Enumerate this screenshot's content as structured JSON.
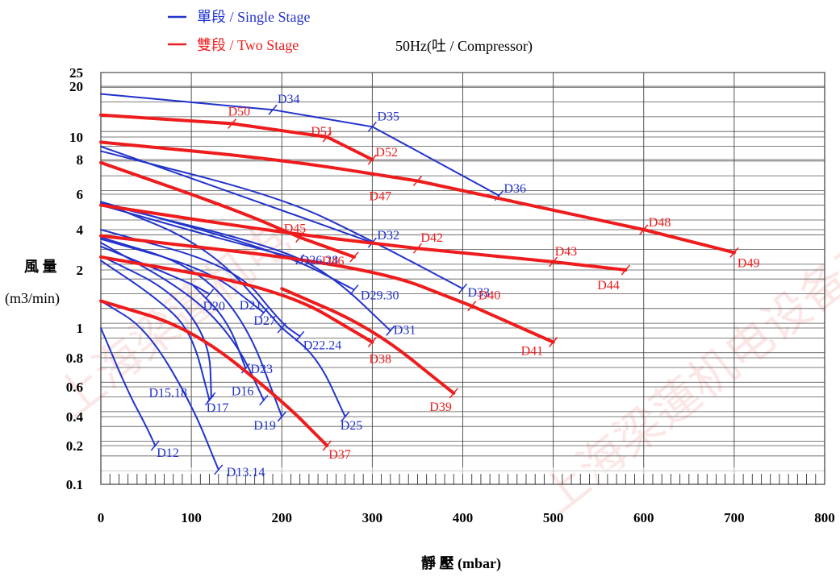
{
  "chart_data": {
    "type": "line",
    "title": "50Hz(吐 / Compressor)",
    "xlabel": "靜 壓 (mbar)",
    "ylabel": [
      "風 量",
      "(m3/min)"
    ],
    "xlim": [
      0,
      800
    ],
    "ylim": [
      0.1,
      25
    ],
    "y_scale": "stretched (non-uniform, ticks evenly spaced in groups)",
    "x_ticks": [
      0,
      100,
      200,
      300,
      400,
      500,
      600,
      700,
      800
    ],
    "y_ticks": [
      "0.1",
      "0.2",
      "0.4",
      "0.6",
      "0.8",
      "1",
      "2",
      "4",
      "6",
      "8",
      "10",
      "20",
      "25"
    ],
    "grid": true,
    "legend": {
      "position": "top-left",
      "entries": [
        {
          "label": "單段 / Single Stage",
          "color": "#2233cc"
        },
        {
          "label": "雙段 / Two Stage",
          "color": "#ee1c1c"
        }
      ]
    },
    "series": [
      {
        "name": "D12",
        "stage": "single",
        "points": [
          [
            0,
            1.0
          ],
          [
            30,
            0.56
          ],
          [
            50,
            0.32
          ],
          [
            60,
            0.2
          ]
        ]
      },
      {
        "name": "D13.14",
        "stage": "single",
        "points": [
          [
            0,
            1.38
          ],
          [
            50,
            1.0
          ],
          [
            100,
            0.48
          ],
          [
            130,
            0.13
          ]
        ]
      },
      {
        "name": "D15.18",
        "stage": "single",
        "points": [
          [
            0,
            2.35
          ],
          [
            60,
            1.45
          ],
          [
            100,
            0.98
          ],
          [
            120,
            0.5
          ]
        ]
      },
      {
        "name": "D16",
        "stage": "single",
        "points": [
          [
            0,
            3.2
          ],
          [
            100,
            1.5
          ],
          [
            150,
            0.9
          ],
          [
            180,
            0.5
          ]
        ]
      },
      {
        "name": "D17",
        "stage": "single",
        "points": [
          [
            0,
            2.55
          ],
          [
            80,
            1.55
          ],
          [
            120,
            0.9
          ],
          [
            122,
            0.52
          ]
        ]
      },
      {
        "name": "D19",
        "stage": "single",
        "points": [
          [
            0,
            3.5
          ],
          [
            100,
            2.2
          ],
          [
            160,
            1.1
          ],
          [
            200,
            0.4
          ]
        ]
      },
      {
        "name": "D20",
        "stage": "single",
        "points": [
          [
            0,
            3.0
          ],
          [
            100,
            1.7
          ],
          [
            120,
            1.5
          ]
        ]
      },
      {
        "name": "D21",
        "stage": "single",
        "points": [
          [
            0,
            3.4
          ],
          [
            120,
            2.0
          ],
          [
            180,
            1.2
          ]
        ]
      },
      {
        "name": "D22.24",
        "stage": "single",
        "points": [
          [
            0,
            4.0
          ],
          [
            150,
            2.1
          ],
          [
            200,
            1.05
          ],
          [
            220,
            0.94
          ]
        ]
      },
      {
        "name": "D23",
        "stage": "single",
        "points": [
          [
            100,
            1.7
          ],
          [
            140,
            1.1
          ],
          [
            160,
            0.72
          ]
        ]
      },
      {
        "name": "D25",
        "stage": "single",
        "points": [
          [
            200,
            1.0
          ],
          [
            240,
            0.8
          ],
          [
            270,
            0.4
          ]
        ]
      },
      {
        "name": "D26.28",
        "stage": "single",
        "points": [
          [
            0,
            5.3
          ],
          [
            120,
            3.6
          ],
          [
            220,
            2.4
          ]
        ]
      },
      {
        "name": "D27",
        "stage": "single",
        "points": [
          [
            0,
            5.5
          ],
          [
            120,
            3.0
          ],
          [
            200,
            1.0
          ]
        ]
      },
      {
        "name": "D29.30",
        "stage": "single",
        "points": [
          [
            0,
            5.5
          ],
          [
            200,
            2.7
          ],
          [
            280,
            1.58
          ]
        ]
      },
      {
        "name": "D31",
        "stage": "single",
        "points": [
          [
            0,
            5.4
          ],
          [
            200,
            2.9
          ],
          [
            260,
            1.8
          ],
          [
            320,
            0.98
          ]
        ]
      },
      {
        "name": "D32",
        "stage": "single",
        "points": [
          [
            0,
            9.1
          ],
          [
            150,
            6.0
          ],
          [
            300,
            3.2
          ]
        ]
      },
      {
        "name": "D33",
        "stage": "single",
        "points": [
          [
            0,
            8.7
          ],
          [
            200,
            5.8
          ],
          [
            300,
            3.3
          ],
          [
            400,
            1.6
          ]
        ]
      },
      {
        "name": "D34",
        "stage": "single",
        "points": [
          [
            0,
            18.0
          ],
          [
            190,
            14.5
          ]
        ]
      },
      {
        "name": "D35",
        "stage": "single",
        "points": [
          [
            190,
            14.5
          ],
          [
            300,
            11.5
          ]
        ]
      },
      {
        "name": "D36",
        "stage": "single",
        "points": [
          [
            300,
            11.5
          ],
          [
            400,
            7.0
          ],
          [
            440,
            5.9
          ]
        ]
      },
      {
        "name": "D37",
        "stage": "two",
        "points": [
          [
            0,
            1.38
          ],
          [
            100,
            1.0
          ],
          [
            200,
            0.5
          ],
          [
            250,
            0.2
          ]
        ]
      },
      {
        "name": "D38",
        "stage": "two",
        "points": [
          [
            0,
            2.5
          ],
          [
            200,
            1.6
          ],
          [
            300,
            0.9
          ]
        ]
      },
      {
        "name": "D39",
        "stage": "two",
        "points": [
          [
            200,
            1.6
          ],
          [
            300,
            1.0
          ],
          [
            390,
            0.55
          ]
        ]
      },
      {
        "name": "D40",
        "stage": "two",
        "points": [
          [
            0,
            3.6
          ],
          [
            300,
            2.1
          ],
          [
            410,
            1.3
          ]
        ]
      },
      {
        "name": "D41",
        "stage": "two",
        "points": [
          [
            410,
            1.3
          ],
          [
            500,
            0.9
          ]
        ]
      },
      {
        "name": "D42",
        "stage": "two",
        "points": [
          [
            0,
            5.3
          ],
          [
            200,
            3.8
          ],
          [
            350,
            2.9
          ]
        ]
      },
      {
        "name": "D43",
        "stage": "two",
        "points": [
          [
            350,
            2.9
          ],
          [
            500,
            2.3
          ]
        ]
      },
      {
        "name": "D44",
        "stage": "two",
        "points": [
          [
            500,
            2.3
          ],
          [
            580,
            2.0
          ]
        ]
      },
      {
        "name": "D45",
        "stage": "two",
        "points": [
          [
            0,
            7.8
          ],
          [
            150,
            5.0
          ],
          [
            220,
            3.5
          ]
        ]
      },
      {
        "name": "D46",
        "stage": "two",
        "points": [
          [
            220,
            3.5
          ],
          [
            280,
            2.5
          ]
        ]
      },
      {
        "name": "D47",
        "stage": "two",
        "points": [
          [
            0,
            9.5
          ],
          [
            200,
            8.0
          ],
          [
            350,
            6.7
          ]
        ]
      },
      {
        "name": "D48",
        "stage": "two",
        "points": [
          [
            350,
            6.7
          ],
          [
            600,
            4.0
          ]
        ]
      },
      {
        "name": "D49",
        "stage": "two",
        "points": [
          [
            600,
            4.0
          ],
          [
            700,
            2.7
          ]
        ]
      },
      {
        "name": "D50",
        "stage": "two",
        "points": [
          [
            0,
            13.5
          ],
          [
            145,
            12.0
          ]
        ]
      },
      {
        "name": "D51",
        "stage": "two",
        "points": [
          [
            145,
            12.0
          ],
          [
            250,
            10.0
          ]
        ]
      },
      {
        "name": "D52",
        "stage": "two",
        "points": [
          [
            250,
            10.0
          ],
          [
            300,
            8.0
          ]
        ]
      }
    ]
  },
  "watermarks": [
    "上海梁蓮机电设备有限公",
    "上海梁蓮机电"
  ]
}
